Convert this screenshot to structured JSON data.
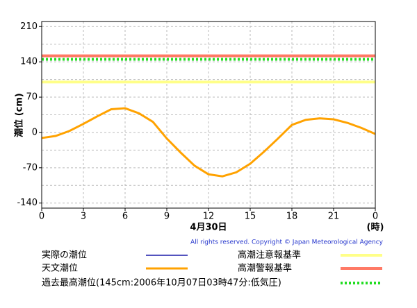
{
  "chart_data": {
    "type": "line",
    "y_label": "潮位 (cm)",
    "x_label": "4月30日",
    "x_unit": "(時)",
    "copyright": "All rights reserved. Copyright © Japan Meteorological Agency",
    "x": [
      0,
      1,
      2,
      3,
      4,
      5,
      6,
      7,
      8,
      9,
      10,
      11,
      12,
      13,
      14,
      15,
      16,
      17,
      18,
      19,
      20,
      21,
      22,
      23,
      24
    ],
    "series": [
      {
        "name": "実際の潮位",
        "color": "#1a1aa8",
        "values": [
          null,
          null,
          null,
          null,
          null,
          null,
          null,
          null,
          null,
          null,
          null,
          null,
          null,
          null,
          null,
          null,
          null,
          null,
          null,
          null,
          null,
          null,
          null,
          null,
          null
        ]
      },
      {
        "name": "天文潮位",
        "color": "#ffa200",
        "values": [
          -11,
          -7,
          3,
          17,
          32,
          46,
          48,
          38,
          21,
          -12,
          -40,
          -66,
          -83,
          -87,
          -79,
          -62,
          -38,
          -12,
          15,
          25,
          28,
          26,
          19,
          9,
          -3
        ]
      }
    ],
    "reference_lines": [
      {
        "name": "高潮注意報基準",
        "color": "#ffff88",
        "value": 100,
        "style": "solid"
      },
      {
        "name": "高潮警報基準",
        "color": "#ff7a66",
        "value": 152,
        "style": "solid"
      },
      {
        "name": "過去最高潮位(145cm:2006年10月07日03時47分:低気圧)",
        "color": "#22dd22",
        "value": 145,
        "style": "dotted"
      }
    ],
    "xlim": [
      0,
      24
    ],
    "xticks": [
      0,
      3,
      6,
      9,
      12,
      15,
      18,
      21,
      {
        "value": 24,
        "label": "0"
      }
    ],
    "ylim": [
      -150,
      220
    ],
    "yticks": [
      -140,
      -70,
      0,
      70,
      140,
      210
    ],
    "yminor": [
      -105,
      -35,
      35,
      105,
      175
    ],
    "grid": true
  }
}
